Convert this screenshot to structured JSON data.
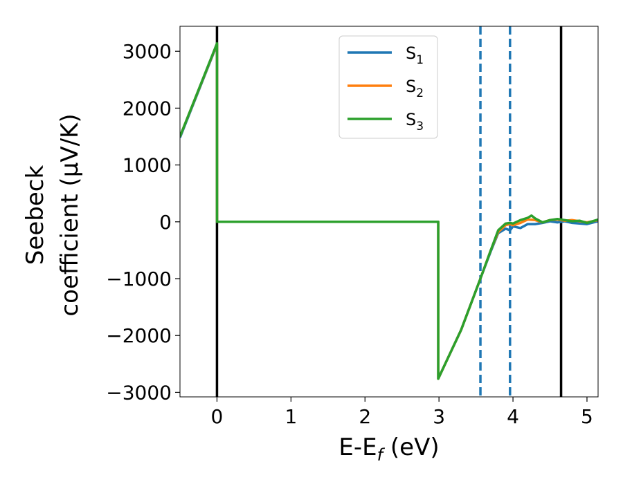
{
  "chart_data": {
    "type": "line",
    "xlabel_main": "E-E",
    "xlabel_sub": "f",
    "xlabel_unit": " (eV)",
    "ylabel_line1": "Seebeck",
    "ylabel_line2": "coefficient  (μV/K)",
    "xlim": [
      -0.5,
      5.15
    ],
    "ylim": [
      -3080,
      3440
    ],
    "x_ticks": [
      0,
      1,
      2,
      3,
      4,
      5
    ],
    "x_tick_labels": [
      "0",
      "1",
      "2",
      "3",
      "4",
      "5"
    ],
    "y_ticks": [
      -3000,
      -2000,
      -1000,
      0,
      1000,
      2000,
      3000
    ],
    "y_tick_labels": [
      "−3000",
      "−2000",
      "−1000",
      "0",
      "1000",
      "2000",
      "3000"
    ],
    "vertical_lines": [
      {
        "x": 0.0,
        "style": "solid",
        "color": "#000000"
      },
      {
        "x": 3.56,
        "style": "dashed",
        "color": "#1f77b4"
      },
      {
        "x": 3.96,
        "style": "dashed",
        "color": "#1f77b4"
      },
      {
        "x": 4.65,
        "style": "solid",
        "color": "#000000"
      }
    ],
    "legend_position": "upper-center",
    "series": [
      {
        "name": "S",
        "subscript": "1",
        "color": "#1f77b4",
        "x": [
          -0.5,
          0.0,
          0.0,
          2.99,
          2.99,
          3.3,
          3.56,
          3.7,
          3.8,
          3.9,
          3.96,
          4.0,
          4.1,
          4.2,
          4.3,
          4.4,
          4.5,
          4.6,
          4.7,
          4.8,
          4.9,
          5.0,
          5.15
        ],
        "y": [
          1480,
          3120,
          0,
          0,
          -2760,
          -1900,
          -1000,
          -520,
          -200,
          -120,
          -150,
          -80,
          -110,
          -40,
          -40,
          -20,
          10,
          -10,
          10,
          -20,
          -30,
          -40,
          10
        ]
      },
      {
        "name": "S",
        "subscript": "2",
        "color": "#ff7f0e",
        "x": [
          -0.5,
          0.0,
          0.0,
          2.99,
          2.99,
          3.3,
          3.56,
          3.7,
          3.8,
          3.9,
          3.96,
          4.0,
          4.1,
          4.2,
          4.3,
          4.4,
          4.5,
          4.6,
          4.7,
          4.8,
          4.9,
          5.0,
          5.15
        ],
        "y": [
          1500,
          3130,
          0,
          0,
          -2760,
          -1900,
          -1000,
          -500,
          -180,
          -60,
          -40,
          -60,
          -20,
          40,
          30,
          -10,
          30,
          40,
          20,
          30,
          10,
          -10,
          30
        ]
      },
      {
        "name": "S",
        "subscript": "3",
        "color": "#2ca02c",
        "x": [
          -0.5,
          0.0,
          0.0,
          2.99,
          2.99,
          3.3,
          3.56,
          3.7,
          3.8,
          3.9,
          3.96,
          4.0,
          4.1,
          4.2,
          4.25,
          4.3,
          4.4,
          4.5,
          4.6,
          4.7,
          4.8,
          4.9,
          5.0,
          5.15
        ],
        "y": [
          1500,
          3140,
          0,
          0,
          -2760,
          -1900,
          -1000,
          -500,
          -150,
          -30,
          -20,
          -30,
          30,
          70,
          110,
          60,
          -10,
          30,
          50,
          30,
          10,
          20,
          -20,
          40
        ]
      }
    ]
  }
}
